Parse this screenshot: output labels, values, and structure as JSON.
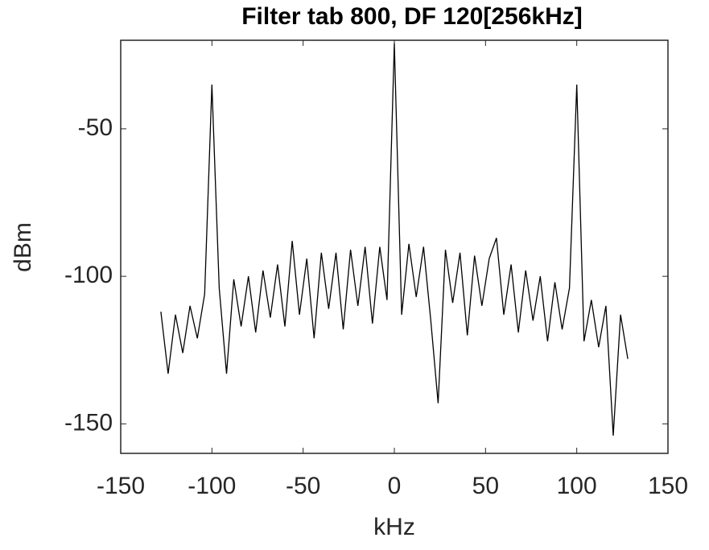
{
  "chart_data": {
    "type": "line",
    "title": "Filter tab 800, DF 120[256kHz]",
    "x_label": "kHz",
    "y_label": "dBm",
    "x": [
      -128,
      -124,
      -120,
      -116,
      -112,
      -108,
      -104,
      -100,
      -96,
      -92,
      -88,
      -84,
      -80,
      -76,
      -72,
      -68,
      -64,
      -60,
      -56,
      -52,
      -48,
      -44,
      -40,
      -36,
      -32,
      -28,
      -24,
      -20,
      -16,
      -12,
      -8,
      -4,
      0,
      4,
      8,
      12,
      16,
      20,
      24,
      28,
      32,
      36,
      40,
      44,
      48,
      52,
      56,
      60,
      64,
      68,
      72,
      76,
      80,
      84,
      88,
      92,
      96,
      100,
      104,
      108,
      112,
      116,
      120,
      124,
      128
    ],
    "series": [
      {
        "color": "#000000",
        "values": [
          -112,
          -133,
          -113,
          -126,
          -110,
          -121,
          -106,
          -35,
          -104,
          -133,
          -101,
          -117,
          -100,
          -119,
          -98,
          -114,
          -96,
          -117,
          -88,
          -113,
          -94,
          -121,
          -92,
          -111,
          -92,
          -118,
          -91,
          -110,
          -90,
          -116,
          -90,
          -108,
          -21,
          -113,
          -89,
          -107,
          -90,
          -115,
          -143,
          -91,
          -109,
          -92,
          -120,
          -93,
          -110,
          -94,
          -87,
          -113,
          -96,
          -119,
          -98,
          -115,
          -100,
          -122,
          -102,
          -118,
          -104,
          -35,
          -122,
          -108,
          -124,
          -110,
          -154,
          -113,
          -128
        ]
      }
    ],
    "xlim": [
      -150,
      150
    ],
    "ylim": [
      -160,
      -20
    ],
    "xticks": [
      -150,
      -100,
      -50,
      0,
      50,
      100,
      150
    ],
    "yticks": [
      -150,
      -100,
      -50
    ],
    "grid": false
  }
}
